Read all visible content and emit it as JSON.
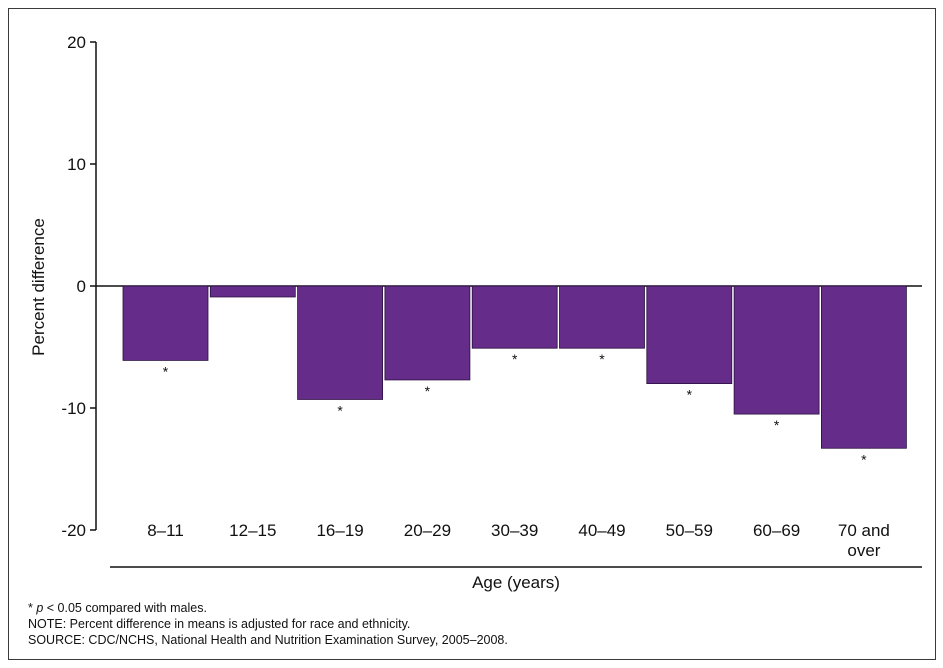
{
  "chart_data": {
    "type": "bar",
    "categories": [
      "8–11",
      "12–15",
      "16–19",
      "20–29",
      "30–39",
      "40–49",
      "50–59",
      "60–69",
      "70 and over"
    ],
    "category_lines": [
      [
        "8–11"
      ],
      [
        "12–15"
      ],
      [
        "16–19"
      ],
      [
        "20–29"
      ],
      [
        "30–39"
      ],
      [
        "40–49"
      ],
      [
        "50–59"
      ],
      [
        "60–69"
      ],
      [
        "70 and",
        "over"
      ]
    ],
    "values": [
      -6.1,
      -0.9,
      -9.3,
      -7.7,
      -5.1,
      -5.1,
      -8.0,
      -10.5,
      -13.3
    ],
    "significant": [
      true,
      false,
      true,
      true,
      true,
      true,
      true,
      true,
      true
    ],
    "significance_marker": "*",
    "title": "",
    "xlabel": "Age (years)",
    "ylabel": "Percent difference",
    "ylim": [
      -20,
      20
    ],
    "yticks": [
      20,
      10,
      0,
      -10,
      -20
    ],
    "ytick_labels": [
      "20",
      "10",
      "0",
      "-10",
      "-20"
    ],
    "bar_color": "#652C8A",
    "grid": false,
    "legend": "none"
  },
  "footnotes": {
    "significance_symbol": "* ",
    "significance_p": "p",
    "significance_rest": " < 0.05 compared with males.",
    "note": "NOTE: Percent difference in means is adjusted for race and ethnicity.",
    "source": "SOURCE: CDC/NCHS, National Health and Nutrition Examination Survey, 2005–2008."
  }
}
